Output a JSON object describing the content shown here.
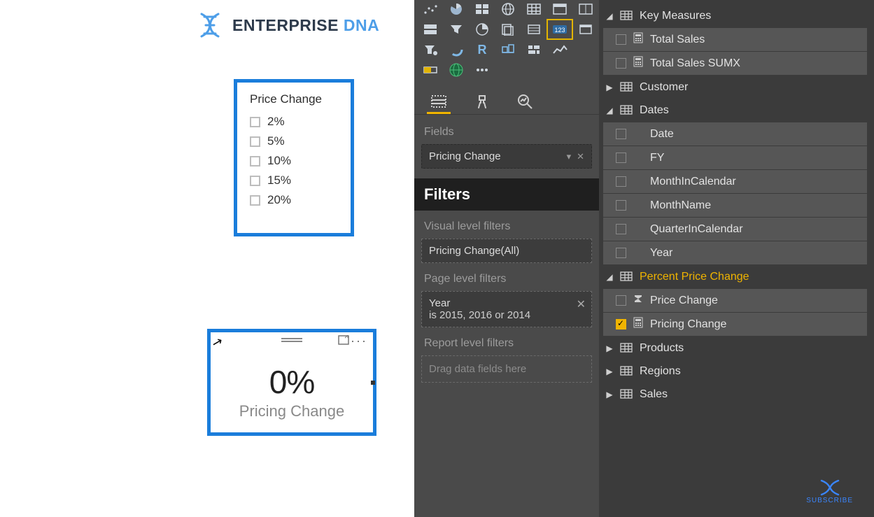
{
  "brand": {
    "name_main": "ENTERPRISE",
    "name_accent": "DNA",
    "accent_color": "#4d9ee8"
  },
  "slicer": {
    "title": "Price Change",
    "options": [
      "2%",
      "5%",
      "10%",
      "15%",
      "20%"
    ],
    "border_color": "#1a7ddb"
  },
  "card": {
    "value": "0%",
    "label": "Pricing Change",
    "more": "···",
    "border_color": "#1a7ddb"
  },
  "viz": {
    "tabs": {
      "fields": "Fields",
      "format": "Format",
      "analytics": "Analytics"
    },
    "section_fields": "Fields",
    "well_value": "Pricing Change",
    "filters_header": "Filters",
    "visual_filters_label": "Visual level filters",
    "visual_filter_value": "Pricing Change(All)",
    "page_filters_label": "Page level filters",
    "page_filter_field": "Year",
    "page_filter_desc": "is 2015, 2016 or 2014",
    "report_filters_label": "Report level filters",
    "report_drop_placeholder": "Drag data fields here",
    "gallery_selected_index": 12
  },
  "fields": {
    "tree": [
      {
        "type": "table-open",
        "label": "Key Measures"
      },
      {
        "type": "measure",
        "label": "Total Sales",
        "checked": false,
        "icon": "calc"
      },
      {
        "type": "measure",
        "label": "Total Sales SUMX",
        "checked": false,
        "icon": "calc"
      },
      {
        "type": "table-closed",
        "label": "Customer"
      },
      {
        "type": "table-open",
        "label": "Dates"
      },
      {
        "type": "column",
        "label": "Date",
        "checked": false
      },
      {
        "type": "column",
        "label": "FY",
        "checked": false
      },
      {
        "type": "column",
        "label": "MonthInCalendar",
        "checked": false
      },
      {
        "type": "column",
        "label": "MonthName",
        "checked": false
      },
      {
        "type": "column",
        "label": "QuarterInCalendar",
        "checked": false
      },
      {
        "type": "column",
        "label": "Year",
        "checked": false
      },
      {
        "type": "table-open-hl",
        "label": "Percent Price Change"
      },
      {
        "type": "measure",
        "label": "Price Change",
        "checked": false,
        "icon": "sigma"
      },
      {
        "type": "measure",
        "label": "Pricing Change",
        "checked": true,
        "icon": "calc"
      },
      {
        "type": "table-closed",
        "label": "Products"
      },
      {
        "type": "table-closed",
        "label": "Regions"
      },
      {
        "type": "table-closed",
        "label": "Sales"
      }
    ]
  },
  "subscribe": {
    "label": "SUBSCRIBE"
  }
}
